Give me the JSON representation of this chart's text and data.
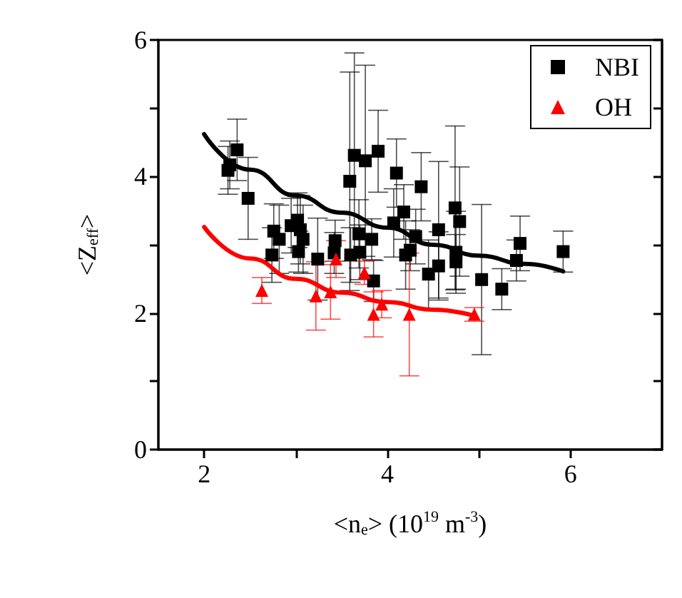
{
  "chart_data": {
    "type": "scatter",
    "xlabel": "<n$_{e}$> (10$^{19}$ m$^{-3}$)",
    "ylabel": "<Z$_{eff}$>",
    "xlim": [
      1.5,
      7
    ],
    "xticks": [
      2,
      {
        "value": 3,
        "label": null
      },
      4,
      {
        "value": 5,
        "label": null
      },
      6
    ],
    "ylim": [
      0,
      6
    ],
    "yticks": [
      0,
      {
        "value": 1,
        "label": null
      },
      2,
      {
        "value": 3,
        "label": null
      },
      4,
      {
        "value": 5,
        "label": null
      },
      6
    ],
    "grid": false,
    "legend": "top right",
    "series": [
      {
        "name": "NBI",
        "marker": "square",
        "color": "#000000",
        "x": [
          2.26,
          2.28,
          2.36,
          2.48,
          2.74,
          2.76,
          2.82,
          2.95,
          3.02,
          3.05,
          3.08,
          3.03,
          3.24,
          3.43,
          3.42,
          3.59,
          3.64,
          3.76,
          3.9,
          3.6,
          3.7,
          3.69,
          3.83,
          3.85,
          4.1,
          4.07,
          4.18,
          4.25,
          4.2,
          4.31,
          4.37,
          4.56,
          4.56,
          4.45,
          4.74,
          4.79,
          4.75,
          4.75,
          5.03,
          5.25,
          5.41,
          5.45,
          5.92
        ],
        "values": [
          4.09,
          4.17,
          4.39,
          3.68,
          2.85,
          3.2,
          3.08,
          3.28,
          3.36,
          3.22,
          3.08,
          2.9,
          2.79,
          3.06,
          2.88,
          3.93,
          4.31,
          4.23,
          4.37,
          2.85,
          2.89,
          3.16,
          3.08,
          2.47,
          4.05,
          3.32,
          3.48,
          2.92,
          2.85,
          3.12,
          3.85,
          3.22,
          2.69,
          2.57,
          3.54,
          3.34,
          2.89,
          2.75,
          2.49,
          2.35,
          2.77,
          3.02,
          2.9
        ],
        "errors": [
          0.35,
          0.35,
          0.45,
          0.6,
          0.4,
          0.4,
          0.5,
          0.4,
          0.4,
          0.5,
          0.5,
          0.3,
          0.6,
          0.3,
          0.3,
          1.6,
          1.5,
          1.4,
          0.6,
          0.4,
          0.4,
          0.5,
          0.3,
          0.3,
          0.5,
          0.5,
          0.4,
          0.3,
          0.5,
          0.4,
          0.5,
          1.0,
          0.5,
          0.5,
          1.2,
          0.8,
          0.6,
          0.4,
          1.1,
          0.3,
          0.3,
          0.4,
          0.3
        ]
      },
      {
        "name": "OH",
        "marker": "triangle",
        "color": "#ff0000",
        "x": [
          2.63,
          3.22,
          3.38,
          3.44,
          3.75,
          3.85,
          3.94,
          4.24,
          4.95
        ],
        "values": [
          2.33,
          2.25,
          2.31,
          2.79,
          2.59,
          1.98,
          2.13,
          1.98,
          1.98
        ],
        "errors": [
          0.19,
          0.5,
          0.4,
          0.27,
          0.17,
          0.33,
          0.2,
          0.9,
          0.1
        ]
      },
      {
        "type": "line",
        "marker": "none",
        "color": "#000000",
        "x": [
          2,
          2.5,
          3,
          3.5,
          4,
          4.5,
          5,
          5.5,
          5.92
        ],
        "values": [
          4.62,
          4.1,
          3.72,
          3.47,
          3.25,
          3.0,
          2.84,
          2.72,
          2.61
        ]
      },
      {
        "type": "line",
        "marker": "none",
        "color": "#ff0000",
        "x": [
          2,
          2.5,
          3,
          3.5,
          4,
          4.5,
          4.95
        ],
        "values": [
          3.26,
          2.8,
          2.5,
          2.3,
          2.16,
          2.05,
          1.96
        ]
      }
    ]
  }
}
